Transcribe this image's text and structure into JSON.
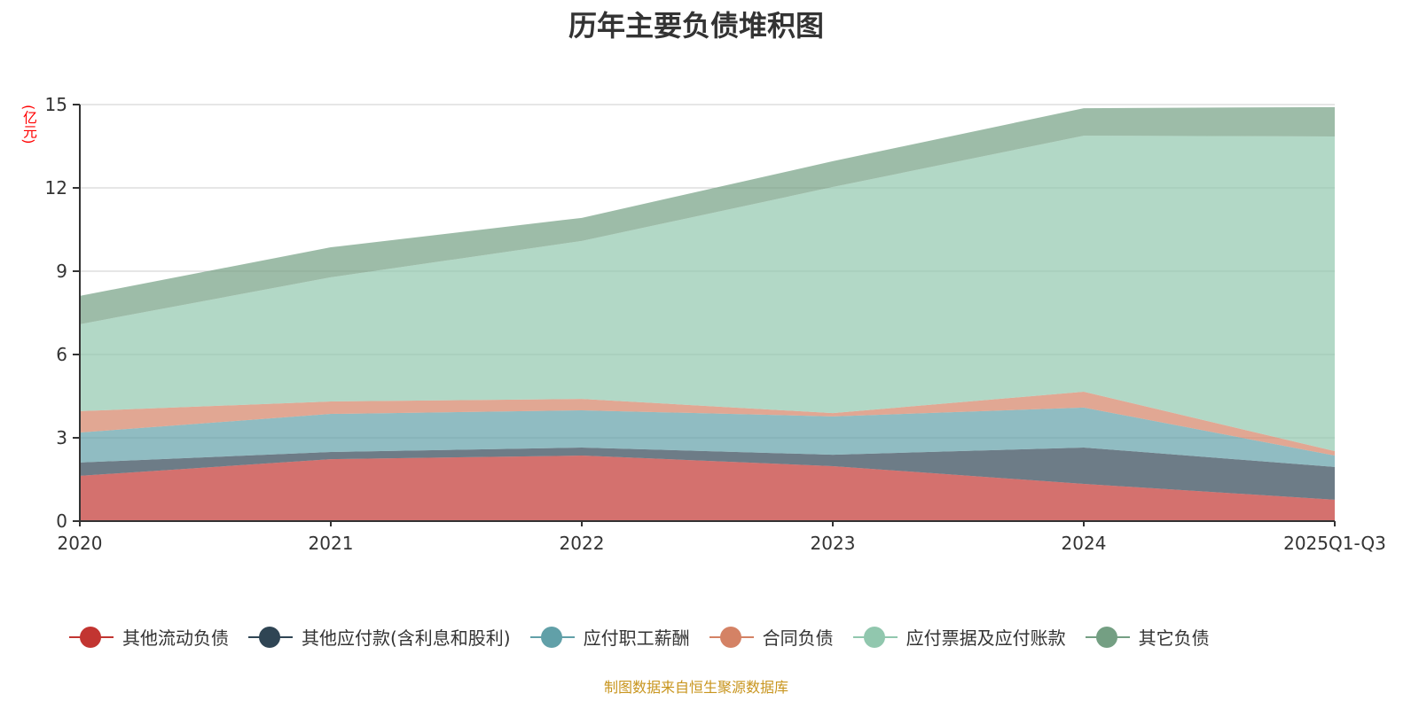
{
  "title": "历年主要负债堆积图",
  "source": "制图数据来自恒生聚源数据库",
  "chart_data": {
    "type": "area",
    "stacked": true,
    "title": "历年主要负债堆积图",
    "ylabel": "(亿元)",
    "ylim": [
      0,
      15
    ],
    "yticks": [
      0,
      3,
      6,
      9,
      12,
      15
    ],
    "grid": true,
    "legend_position": "bottom",
    "categories": [
      "2020",
      "2021",
      "2022",
      "2023",
      "2024",
      "2025Q1-Q3"
    ],
    "series": [
      {
        "name": "其他流动负债",
        "color": "#c23531",
        "values": [
          1.63,
          2.23,
          2.36,
          1.98,
          1.34,
          0.77
        ]
      },
      {
        "name": "其他应付款(含利息和股利)",
        "color": "#2f4554",
        "values": [
          0.48,
          0.26,
          0.29,
          0.41,
          1.31,
          1.18
        ]
      },
      {
        "name": "应付职工薪酬",
        "color": "#61a0a8",
        "values": [
          1.08,
          1.37,
          1.34,
          1.38,
          1.44,
          0.41
        ]
      },
      {
        "name": "合同负债",
        "color": "#d48265",
        "values": [
          0.77,
          0.45,
          0.41,
          0.12,
          0.57,
          0.16
        ]
      },
      {
        "name": "应付票据及应付账款",
        "color": "#91c7ae",
        "values": [
          3.13,
          4.47,
          5.69,
          8.14,
          9.22,
          11.33
        ]
      },
      {
        "name": "其它负债",
        "color": "#749f83",
        "values": [
          1.02,
          1.08,
          0.83,
          0.93,
          0.99,
          1.06
        ]
      }
    ]
  }
}
